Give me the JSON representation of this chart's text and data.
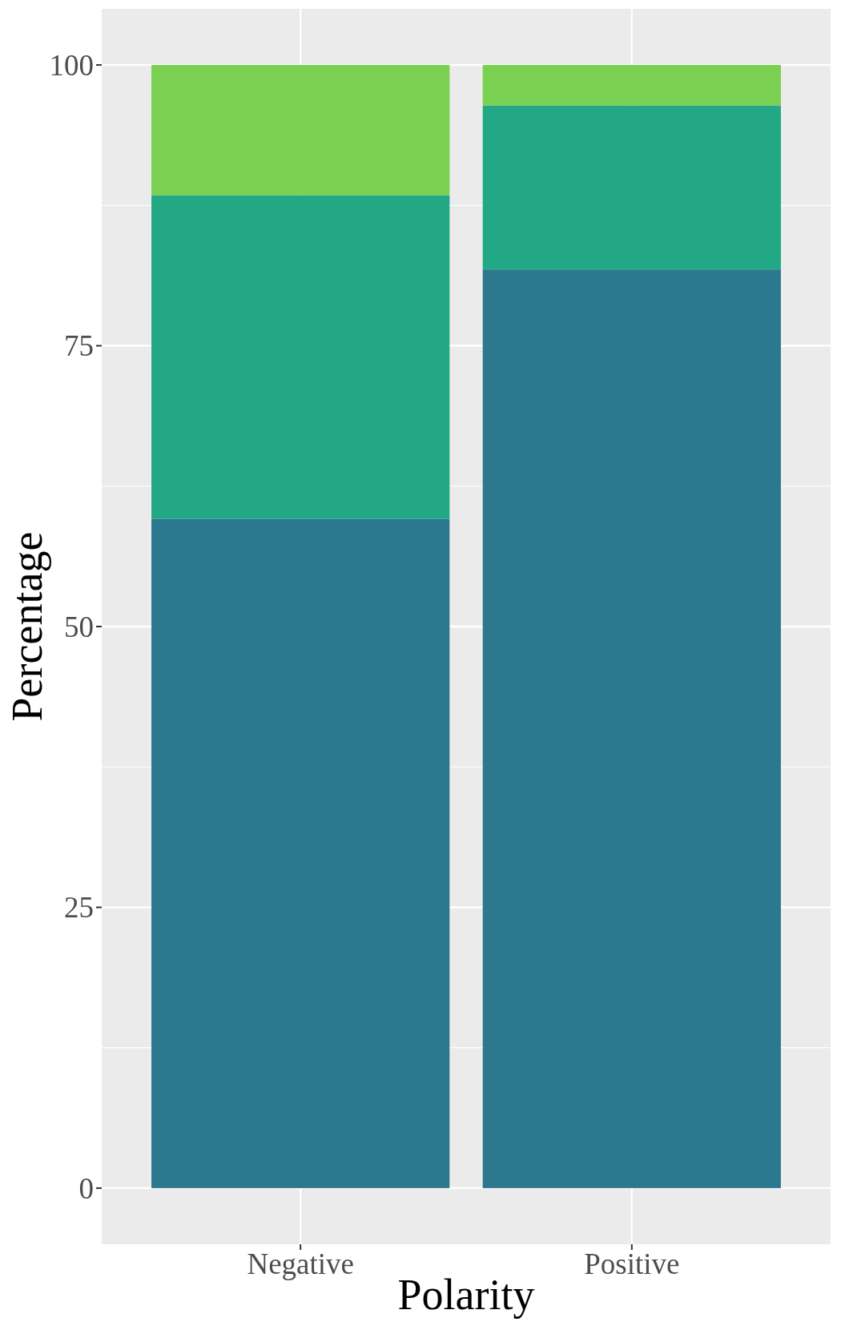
{
  "chart_data": {
    "type": "bar",
    "xlabel": "Polarity",
    "ylabel": "Percentage",
    "categories": [
      "Negative",
      "Positive"
    ],
    "series": [
      {
        "color": "#2c788e",
        "values": [
          59.6,
          81.8
        ]
      },
      {
        "color": "#22a884",
        "values": [
          28.8,
          14.6
        ]
      },
      {
        "color": "#7ad151",
        "values": [
          11.6,
          3.6
        ]
      }
    ],
    "stacked": true,
    "ylim": [
      -5,
      105
    ],
    "yticks": [
      0,
      25,
      50,
      75,
      100
    ],
    "grid": true
  }
}
